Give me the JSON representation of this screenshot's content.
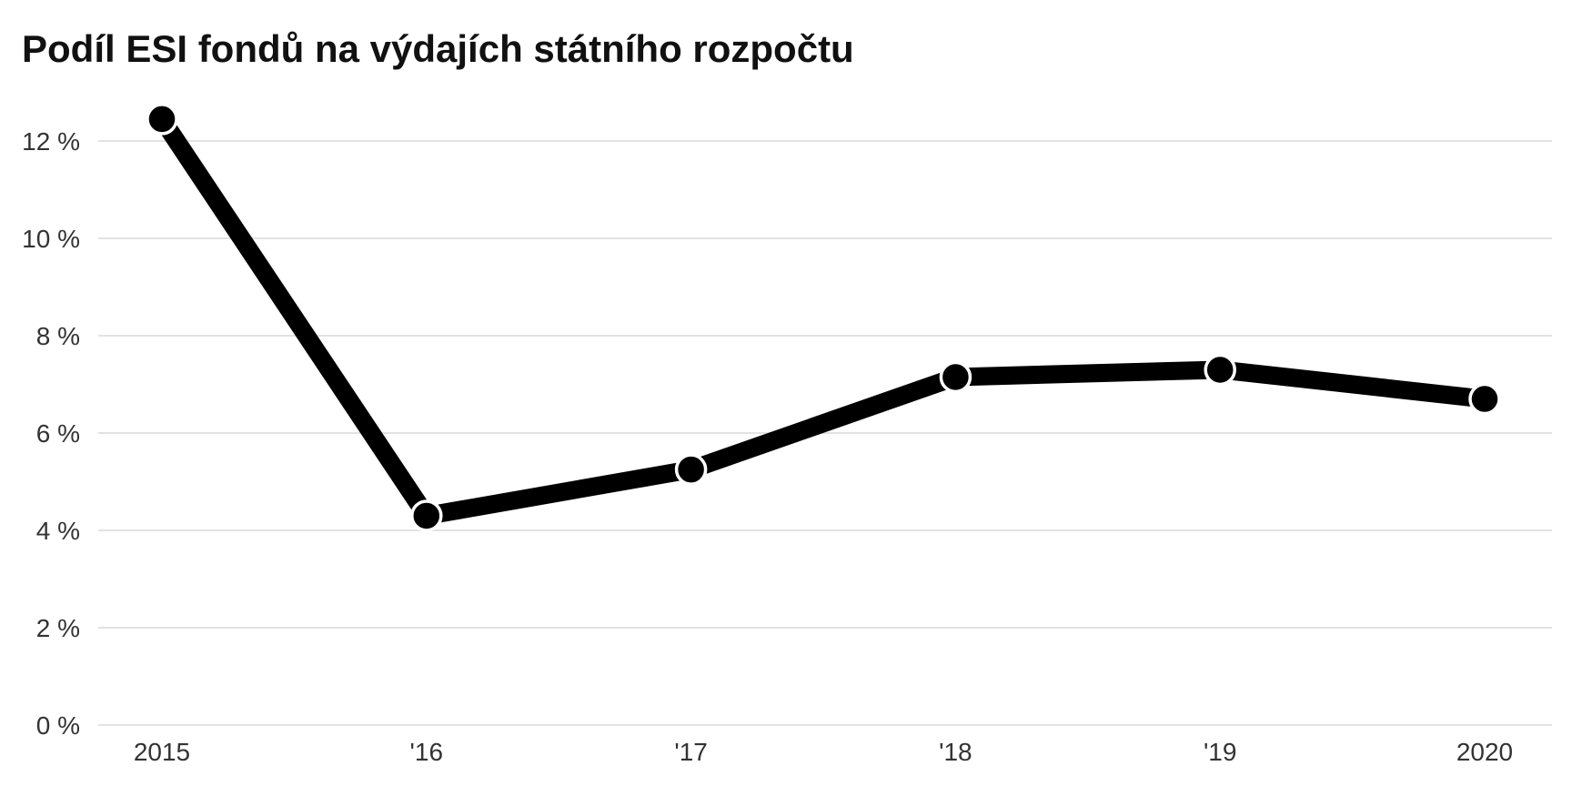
{
  "chart_data": {
    "type": "line",
    "title": "Podíl ESI fondů na výdajích státního rozpočtu",
    "xlabel": "",
    "ylabel": "",
    "categories": [
      "2015",
      "'16",
      "'17",
      "'18",
      "'19",
      "2020"
    ],
    "values": [
      12.45,
      4.3,
      5.25,
      7.15,
      7.3,
      6.7
    ],
    "ylim": [
      0,
      12.8
    ],
    "yticks": [
      0,
      2,
      4,
      6,
      8,
      10,
      12
    ],
    "ytick_labels": [
      "0 %",
      "2 %",
      "4 %",
      "6 %",
      "8 %",
      "10 %",
      "12 %"
    ],
    "grid": true,
    "legend": "none",
    "colors": {
      "line": "#000000",
      "marker_outline": "#ffffff",
      "grid": "#e2e2e2"
    }
  }
}
